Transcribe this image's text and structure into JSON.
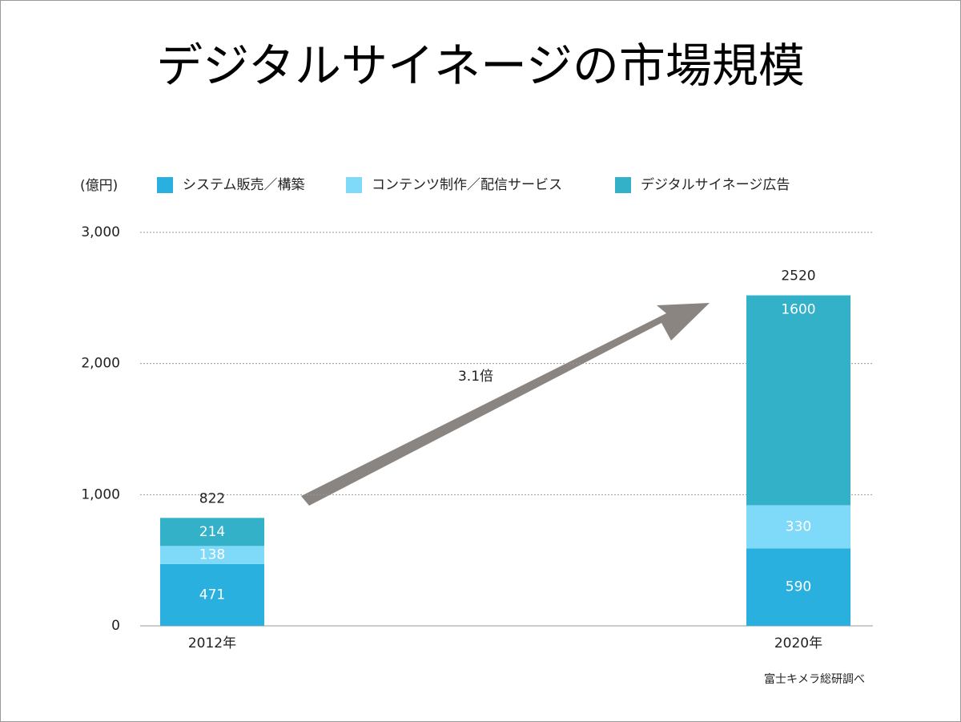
{
  "chart_data": {
    "type": "stacked-bar",
    "title": "デジタルサイネージの市場規模",
    "y_label": "(億円)",
    "categories": [
      "2012年",
      "2020年"
    ],
    "series": [
      {
        "name": "システム販売／構築",
        "color": "#29b0df",
        "values": [
          471,
          590
        ]
      },
      {
        "name": "コンテンツ制作／配信サービス",
        "color": "#7fd9f9",
        "values": [
          138,
          330
        ]
      },
      {
        "name": "デジタルサイネージ広告",
        "color": "#33b1c9",
        "values": [
          214,
          1600
        ]
      }
    ],
    "totals": [
      822,
      2520
    ],
    "annotation": "3.1倍",
    "source": "富士キメラ総研調べ",
    "ylim": [
      0,
      3000
    ],
    "yticks": [
      0,
      {
        "value": 1000,
        "label": "1,000"
      },
      {
        "value": 2000,
        "label": "2,000"
      },
      {
        "value": 3000,
        "label": "3,000"
      }
    ],
    "grid": true
  }
}
